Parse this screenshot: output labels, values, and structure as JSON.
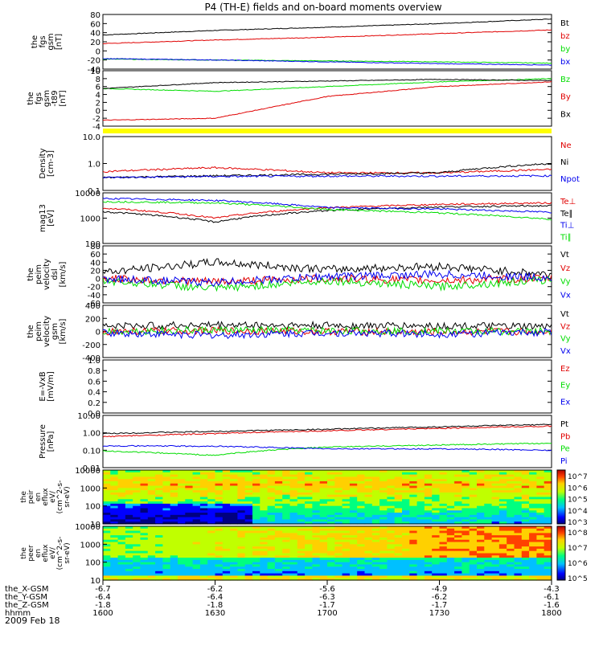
{
  "title": "P4 (TH-E) fields and on-board moments overview",
  "date": "2009 Feb 18",
  "colors": {
    "black": "#000000",
    "red": "#e00000",
    "green": "#00dd00",
    "blue": "#0000ee",
    "yellow": "#ffff00"
  },
  "chart_data": {
    "type": "line",
    "x": [
      "1600",
      "1630",
      "1700",
      "1730",
      "1800"
    ],
    "xlabel": "hhmm",
    "ephemeris": [
      {
        "label": "the_X-GSM",
        "values": [
          "-6.7",
          "-6.2",
          "-5.6",
          "-4.9",
          "-4.3"
        ]
      },
      {
        "label": "the_Y-GSM",
        "values": [
          "-6.4",
          "-6.4",
          "-6.3",
          "-6.2",
          "-6.1"
        ]
      },
      {
        "label": "the_Z-GSM",
        "values": [
          "-1.8",
          "-1.8",
          "-1.7",
          "-1.7",
          "-1.6"
        ]
      }
    ],
    "panels": [
      {
        "id": "fgs",
        "ylabel": [
          "the",
          "fgs",
          "gsm",
          "[nT]"
        ],
        "ylim": [
          -40,
          80
        ],
        "ticks": [
          "80",
          "60",
          "40",
          "20",
          "0",
          "-20",
          "-40"
        ],
        "series": [
          {
            "name": "Bt",
            "color": "black",
            "values": [
              35,
              45,
              52,
              60,
              70
            ]
          },
          {
            "name": "bz",
            "color": "red",
            "values": [
              16,
              24,
              30,
              38,
              46
            ]
          },
          {
            "name": "by",
            "color": "green",
            "values": [
              -18,
              -20,
              -22,
              -24,
              -27
            ]
          },
          {
            "name": "bx",
            "color": "blue",
            "values": [
              -17,
              -20,
              -24,
              -28,
              -31
            ]
          }
        ]
      },
      {
        "id": "fgs-dsl",
        "ylabel": [
          "the",
          "fgs",
          "gsm",
          "-t89",
          "[nT]"
        ],
        "ylim": [
          -4,
          10
        ],
        "ticks": [
          "10",
          "8",
          "6",
          "4",
          "2",
          "0",
          "-2",
          "-4"
        ],
        "series": [
          {
            "name": "Bz",
            "color": "green",
            "values": [
              5.5,
              4.8,
              6.0,
              7.2,
              8.0
            ]
          },
          {
            "name": "By",
            "color": "red",
            "values": [
              -2.5,
              -2.0,
              3.5,
              6.0,
              7.2
            ]
          },
          {
            "name": "Bx",
            "color": "black",
            "values": [
              5.5,
              7.0,
              7.4,
              7.8,
              7.5
            ]
          }
        ]
      },
      {
        "id": "density",
        "ylabel": [
          "Density",
          "[cm-3]"
        ],
        "scale": "log",
        "ylim": [
          0.1,
          10
        ],
        "ticks": [
          "10.0",
          "1.0",
          "0.1"
        ],
        "series": [
          {
            "name": "Ne",
            "color": "red",
            "values": [
              0.5,
              0.7,
              0.45,
              0.45,
              0.6
            ]
          },
          {
            "name": "Ni",
            "color": "black",
            "values": [
              0.3,
              0.35,
              0.4,
              0.45,
              1.0
            ]
          },
          {
            "name": "Npot",
            "color": "blue",
            "values": [
              0.3,
              0.33,
              0.34,
              0.34,
              0.35
            ]
          }
        ]
      },
      {
        "id": "temperature",
        "ylabel": [
          "mag13",
          "[eV]"
        ],
        "scale": "log",
        "ylim": [
          100,
          10000
        ],
        "ticks": [
          "10000",
          "1000",
          "100"
        ],
        "series": [
          {
            "name": "Te⊥",
            "color": "red",
            "values": [
              2500,
              1000,
              2600,
              3500,
              4000
            ]
          },
          {
            "name": "Te∥",
            "color": "black",
            "values": [
              1800,
              700,
              2000,
              2800,
              3100
            ]
          },
          {
            "name": "Ti⊥",
            "color": "blue",
            "values": [
              6000,
              5000,
              2600,
              2300,
              1700
            ]
          },
          {
            "name": "Ti∥",
            "color": "green",
            "values": [
              4500,
              4000,
              2200,
              1600,
              900
            ]
          }
        ]
      },
      {
        "id": "velocity-dsl",
        "ylabel": [
          "the",
          "peim",
          "velocity",
          "dsl",
          "[km/s]"
        ],
        "ylim": [
          -60,
          80
        ],
        "ticks": [
          "80",
          "60",
          "40",
          "20",
          "0",
          "-20",
          "-40",
          "-60"
        ],
        "series": [
          {
            "name": "Vt",
            "color": "black",
            "values": [
              15,
              40,
              22,
              30,
              10
            ]
          },
          {
            "name": "Vz",
            "color": "red",
            "values": [
              0,
              -8,
              0,
              -5,
              0
            ]
          },
          {
            "name": "Vy",
            "color": "green",
            "values": [
              -5,
              -25,
              -5,
              -20,
              -3
            ]
          },
          {
            "name": "Vx",
            "color": "blue",
            "values": [
              0,
              -10,
              5,
              10,
              2
            ]
          }
        ]
      },
      {
        "id": "velocity-gsm",
        "ylabel": [
          "the",
          "peim",
          "velocity",
          "gsm",
          "[km/s]"
        ],
        "ylim": [
          -400,
          400
        ],
        "ticks": [
          "400",
          "200",
          "0",
          "-200",
          "-400"
        ],
        "series": [
          {
            "name": "Vt",
            "color": "black",
            "values": [
              80,
              100,
              90,
              85,
              70
            ]
          },
          {
            "name": "Vz",
            "color": "red",
            "values": [
              0,
              10,
              0,
              -10,
              0
            ]
          },
          {
            "name": "Vy",
            "color": "green",
            "values": [
              0,
              20,
              10,
              5,
              0
            ]
          },
          {
            "name": "Vx",
            "color": "blue",
            "values": [
              -20,
              -60,
              -20,
              -40,
              -10
            ]
          }
        ]
      },
      {
        "id": "efield",
        "ylabel": [
          "E=-VxB",
          "[mV/m]"
        ],
        "ylim": [
          0,
          1
        ],
        "ticks": [
          "1.0",
          "0.8",
          "0.6",
          "0.4",
          "0.2",
          "0.0"
        ],
        "series": [
          {
            "name": "Ez",
            "color": "red",
            "values": []
          },
          {
            "name": "Ey",
            "color": "green",
            "values": []
          },
          {
            "name": "Ex",
            "color": "blue",
            "values": []
          }
        ]
      },
      {
        "id": "pressure",
        "ylabel": [
          "Pressure",
          "[nPa]"
        ],
        "scale": "log",
        "ylim": [
          0.01,
          10
        ],
        "ticks": [
          "10.00",
          "1.00",
          "0.10",
          "0.01"
        ],
        "series": [
          {
            "name": "Pt",
            "color": "black",
            "values": [
              0.9,
              1.2,
              1.6,
              2.2,
              3.0
            ]
          },
          {
            "name": "Pb",
            "color": "red",
            "values": [
              0.6,
              0.9,
              1.3,
              1.8,
              2.4
            ]
          },
          {
            "name": "Pe",
            "color": "green",
            "values": [
              0.09,
              0.05,
              0.15,
              0.2,
              0.25
            ]
          },
          {
            "name": "Pi",
            "color": "blue",
            "values": [
              0.18,
              0.17,
              0.12,
              0.12,
              0.1
            ]
          }
        ]
      }
    ],
    "spectrograms": [
      {
        "id": "ion-eflux",
        "ylabel": [
          "the",
          "peir",
          "en",
          "eflux",
          "eV/",
          "(cm^2-s-",
          "sr-eV)"
        ],
        "ylim": [
          10,
          10000
        ],
        "ticks": [
          "10000",
          "1000",
          "100",
          "10"
        ],
        "colorbar_labels": [
          "10^7",
          "10^6",
          "10^5",
          "10^4",
          "10^3"
        ]
      },
      {
        "id": "electron-eflux",
        "ylabel": [
          "the",
          "peer",
          "en",
          "eflux",
          "eV/",
          "(cm^2-s-",
          "sr-eV)"
        ],
        "ylim": [
          10,
          10000
        ],
        "ticks": [
          "10000",
          "1000",
          "100",
          "10"
        ],
        "colorbar_labels": [
          "10^8",
          "10^7",
          "10^6",
          "10^5"
        ]
      }
    ]
  }
}
